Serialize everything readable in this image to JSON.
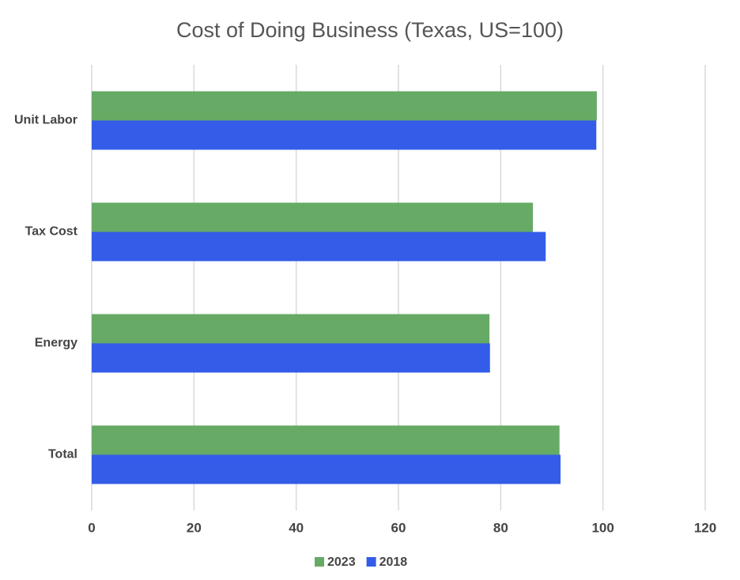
{
  "chart_data": {
    "type": "bar",
    "orientation": "horizontal",
    "title": "Cost of Doing Business (Texas, US=100)",
    "categories": [
      "Unit Labor",
      "Tax Cost",
      "Energy",
      "Total"
    ],
    "series": [
      {
        "name": "2023",
        "color": "#66aa66",
        "values": [
          98.8,
          86.3,
          77.8,
          91.5
        ]
      },
      {
        "name": "2018",
        "color": "#335ce8",
        "values": [
          98.7,
          88.8,
          77.9,
          91.7
        ]
      }
    ],
    "xlim": [
      0,
      120
    ],
    "xticks": [
      0,
      20,
      40,
      60,
      80,
      100,
      120
    ],
    "grid": true,
    "legend": "bottom"
  }
}
